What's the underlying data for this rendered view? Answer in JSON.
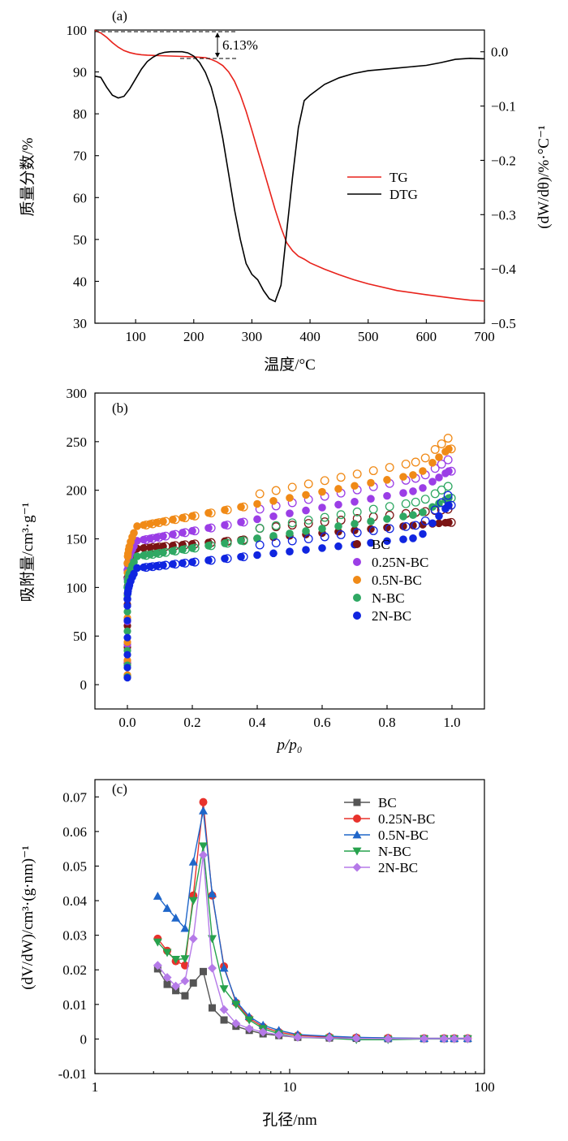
{
  "chart_data": [
    {
      "panel": "(a)",
      "type": "line",
      "xlabel": "温度/°C",
      "ylabel_left": "质量分数/%",
      "ylabel_right": "(dW/dθ)/%·°C⁻¹",
      "xlim": [
        30,
        700
      ],
      "ylim_left": [
        30,
        100
      ],
      "ylim_right": [
        -0.5,
        0.04
      ],
      "x_ticks": [
        100,
        200,
        300,
        400,
        500,
        600,
        700
      ],
      "y_ticks_left": [
        30,
        40,
        50,
        60,
        70,
        80,
        90,
        100
      ],
      "y_ticks_right": [
        "0.0",
        "−0.1",
        "−0.2",
        "−0.3",
        "−0.4",
        "−0.5"
      ],
      "annotation": "6.13%",
      "legend_position": "center-right",
      "series": [
        {
          "name": "TG",
          "axis": "left",
          "color": "#e8221b",
          "x": [
            30,
            40,
            50,
            60,
            70,
            80,
            90,
            100,
            110,
            120,
            140,
            160,
            180,
            200,
            220,
            230,
            240,
            250,
            260,
            270,
            280,
            290,
            300,
            310,
            320,
            330,
            340,
            350,
            360,
            370,
            380,
            390,
            400,
            425,
            450,
            475,
            500,
            550,
            600,
            650,
            675,
            700
          ],
          "y": [
            99.9,
            99.3,
            98.3,
            97.0,
            95.9,
            95.1,
            94.6,
            94.3,
            94.1,
            94.0,
            93.9,
            93.8,
            93.7,
            93.6,
            93.4,
            93.0,
            92.4,
            91.5,
            90.0,
            87.8,
            84.6,
            80.6,
            76.1,
            71.3,
            66.6,
            61.9,
            57.1,
            52.8,
            49.2,
            47.3,
            46.0,
            45.3,
            44.4,
            42.9,
            41.6,
            40.4,
            39.4,
            37.8,
            36.8,
            35.9,
            35.5,
            35.3
          ]
        },
        {
          "name": "DTG",
          "axis": "right",
          "color": "#000000",
          "x": [
            30,
            40,
            50,
            60,
            70,
            80,
            90,
            100,
            110,
            120,
            130,
            140,
            150,
            160,
            170,
            180,
            190,
            200,
            210,
            220,
            230,
            240,
            250,
            260,
            270,
            280,
            290,
            300,
            310,
            320,
            330,
            340,
            350,
            360,
            370,
            380,
            390,
            400,
            425,
            450,
            475,
            500,
            550,
            600,
            625,
            650,
            675,
            700
          ],
          "y": [
            -0.045,
            -0.047,
            -0.065,
            -0.08,
            -0.085,
            -0.082,
            -0.068,
            -0.05,
            -0.032,
            -0.018,
            -0.01,
            -0.004,
            -0.001,
            0.0,
            0.0,
            0.0,
            -0.002,
            -0.008,
            -0.02,
            -0.038,
            -0.065,
            -0.105,
            -0.16,
            -0.225,
            -0.29,
            -0.345,
            -0.39,
            -0.41,
            -0.42,
            -0.44,
            -0.455,
            -0.46,
            -0.43,
            -0.33,
            -0.23,
            -0.14,
            -0.09,
            -0.08,
            -0.06,
            -0.048,
            -0.04,
            -0.035,
            -0.03,
            -0.025,
            -0.02,
            -0.014,
            -0.012,
            -0.013
          ]
        }
      ]
    },
    {
      "panel": "(b)",
      "type": "scatter",
      "xlabel": "p/p₀",
      "ylabel": "吸附量/cm³·g⁻¹",
      "xlim": [
        -0.1,
        1.1
      ],
      "ylim": [
        -25,
        300
      ],
      "x_ticks": [
        "0.0",
        "0.2",
        "0.4",
        "0.6",
        "0.8",
        "1.0"
      ],
      "y_ticks": [
        0,
        50,
        100,
        150,
        200,
        250,
        300
      ],
      "legend_position": "lower-right",
      "series": [
        {
          "name": "BC",
          "color": "#7b1414",
          "base": 110,
          "shoulder": 140,
          "slope": 28,
          "tail": 0
        },
        {
          "name": "0.25N-BC",
          "color": "#9b3ee6",
          "base": 118,
          "shoulder": 148,
          "slope": 60,
          "tail": 14
        },
        {
          "name": "0.5N-BC",
          "color": "#f08a17",
          "base": 125,
          "shoulder": 163,
          "slope": 62,
          "tail": 20
        },
        {
          "name": "N-BC",
          "color": "#2fa863",
          "base": 100,
          "shoulder": 132,
          "slope": 50,
          "tail": 12
        },
        {
          "name": "2N-BC",
          "color": "#1025e0",
          "base": 88,
          "shoulder": 120,
          "slope": 36,
          "tail": 30
        }
      ],
      "p_values": [
        0.0,
        0.001,
        0.002,
        0.004,
        0.006,
        0.01,
        0.015,
        0.02,
        0.03,
        0.05,
        0.07,
        0.09,
        0.11,
        0.14,
        0.17,
        0.2,
        0.25,
        0.3,
        0.35,
        0.4,
        0.45,
        0.5,
        0.55,
        0.6,
        0.65,
        0.7,
        0.75,
        0.8,
        0.85,
        0.88,
        0.91,
        0.94,
        0.96,
        0.98,
        0.99
      ]
    },
    {
      "panel": "(c)",
      "type": "line",
      "xlabel": "孔径/nm",
      "ylabel": "(dV/dW)/cm³·(g·nm)⁻¹",
      "xscale": "log",
      "xlim": [
        1,
        100
      ],
      "ylim": [
        -0.01,
        0.075
      ],
      "x_ticks": [
        1,
        10,
        100
      ],
      "y_ticks": [
        "-0.01",
        "0",
        "0.01",
        "0.02",
        "0.03",
        "0.04",
        "0.05",
        "0.06",
        "0.07"
      ],
      "legend_position": "top-right",
      "x": [
        2.1,
        2.35,
        2.6,
        2.9,
        3.2,
        3.6,
        4.0,
        4.6,
        5.3,
        6.2,
        7.3,
        8.8,
        11.0,
        16.0,
        22.0,
        32.0,
        49.0,
        62.0,
        70.0,
        82.0
      ],
      "series": [
        {
          "name": "BC",
          "color": "#555555",
          "marker": "square",
          "y": [
            0.0203,
            0.0158,
            0.014,
            0.0125,
            0.0162,
            0.0195,
            0.009,
            0.0055,
            0.0037,
            0.0025,
            0.0015,
            0.001,
            0.0005,
            0.0003,
            0.0002,
            0.0001,
            0.0001,
            0.0001,
            0.0001,
            0.0001
          ]
        },
        {
          "name": "0.25N-BC",
          "color": "#e8322c",
          "marker": "circle",
          "y": [
            0.029,
            0.0255,
            0.0225,
            0.0213,
            0.0415,
            0.0685,
            0.0415,
            0.021,
            0.0105,
            0.006,
            0.0035,
            0.002,
            0.001,
            0.0006,
            0.0004,
            0.0003,
            0.0002,
            0.0002,
            0.0002,
            0.0002
          ]
        },
        {
          "name": "0.5N-BC",
          "color": "#1f66c9",
          "marker": "triangle",
          "y": [
            0.0413,
            0.0378,
            0.035,
            0.032,
            0.0512,
            0.066,
            0.042,
            0.0205,
            0.011,
            0.0065,
            0.004,
            0.0025,
            0.0013,
            0.0008,
            0.0005,
            0.0003,
            0.0002,
            0.0002,
            0.0002,
            0.0002
          ]
        },
        {
          "name": "N-BC",
          "color": "#27a24d",
          "marker": "triangle-down",
          "y": [
            0.028,
            0.025,
            0.023,
            0.0232,
            0.04,
            0.0558,
            0.029,
            0.0145,
            0.01,
            0.0055,
            0.003,
            0.0015,
            0.0005,
            0.0002,
            -0.0002,
            -0.0002,
            0.0,
            0.0,
            0.0,
            0.0
          ]
        },
        {
          "name": "2N-BC",
          "color": "#b57ae8",
          "marker": "diamond",
          "y": [
            0.0213,
            0.0178,
            0.0153,
            0.0168,
            0.029,
            0.0532,
            0.0205,
            0.0085,
            0.0045,
            0.003,
            0.002,
            0.0012,
            0.0005,
            0.0003,
            0.0002,
            0.0001,
            0.0001,
            0.0001,
            0.0001,
            0.0001
          ]
        }
      ]
    }
  ]
}
